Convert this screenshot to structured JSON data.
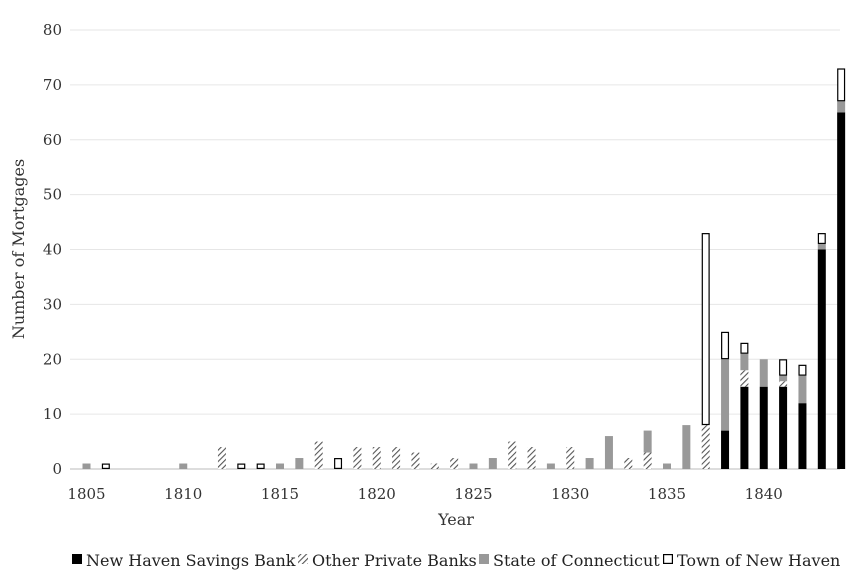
{
  "chart_data": {
    "type": "bar",
    "stacked": true,
    "title": "",
    "xlabel": "Year",
    "ylabel": "Number of Mortgages",
    "ylim": [
      0,
      80
    ],
    "y_ticks": [
      0,
      10,
      20,
      30,
      40,
      50,
      60,
      70,
      80
    ],
    "x_ticks": [
      1805,
      1810,
      1815,
      1820,
      1825,
      1830,
      1835,
      1840
    ],
    "x_range": [
      1805,
      1844
    ],
    "grid": "horizontal",
    "legend_position": "bottom",
    "categories": [
      1805,
      1806,
      1807,
      1808,
      1809,
      1810,
      1811,
      1812,
      1813,
      1814,
      1815,
      1816,
      1817,
      1818,
      1819,
      1820,
      1821,
      1822,
      1823,
      1824,
      1825,
      1826,
      1827,
      1828,
      1829,
      1830,
      1831,
      1832,
      1833,
      1834,
      1835,
      1836,
      1837,
      1838,
      1839,
      1840,
      1841,
      1842,
      1843,
      1844
    ],
    "series": [
      {
        "name": "New Haven Savings Bank",
        "style": "solid-black",
        "color": "#000000",
        "values": [
          0,
          0,
          0,
          0,
          0,
          0,
          0,
          0,
          0,
          0,
          0,
          0,
          0,
          0,
          0,
          0,
          0,
          0,
          0,
          0,
          0,
          0,
          0,
          0,
          0,
          0,
          0,
          0,
          0,
          0,
          0,
          0,
          0,
          7,
          15,
          15,
          15,
          12,
          40,
          65
        ]
      },
      {
        "name": "Other Private Banks",
        "style": "hatched",
        "color": "#555555",
        "values": [
          0,
          0,
          0,
          0,
          0,
          0,
          0,
          4,
          0,
          0,
          0,
          0,
          5,
          0,
          4,
          4,
          4,
          3,
          1,
          2,
          0,
          0,
          5,
          4,
          0,
          4,
          0,
          0,
          2,
          3,
          0,
          0,
          8,
          0,
          3,
          0,
          1,
          0,
          0,
          0
        ]
      },
      {
        "name": "State of Connecticut",
        "style": "solid-gray",
        "color": "#999999",
        "values": [
          1,
          0,
          0,
          0,
          0,
          1,
          0,
          0,
          0,
          0,
          1,
          2,
          0,
          0,
          0,
          0,
          0,
          0,
          0,
          0,
          1,
          2,
          0,
          0,
          1,
          0,
          2,
          6,
          0,
          4,
          1,
          8,
          0,
          13,
          3,
          5,
          1,
          5,
          1,
          2
        ]
      },
      {
        "name": "Town of New Haven",
        "style": "outline",
        "color": "#ffffff",
        "values": [
          0,
          1,
          0,
          0,
          0,
          0,
          0,
          0,
          1,
          1,
          0,
          0,
          0,
          2,
          0,
          0,
          0,
          0,
          0,
          0,
          0,
          0,
          0,
          0,
          0,
          0,
          0,
          0,
          0,
          0,
          0,
          0,
          35,
          5,
          2,
          0,
          3,
          2,
          2,
          6
        ]
      }
    ]
  }
}
